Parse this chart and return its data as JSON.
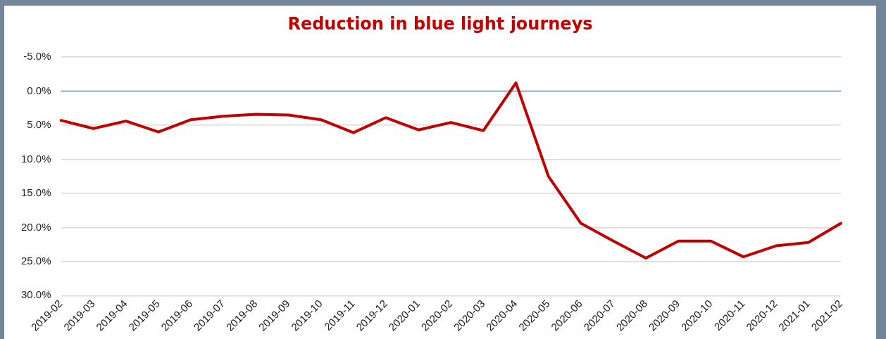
{
  "chart_data": {
    "type": "line",
    "title": "Reduction in blue light journeys",
    "categories": [
      "2019-02",
      "2019-03",
      "2019-04",
      "2019-05",
      "2019-06",
      "2019-07",
      "2019-08",
      "2019-09",
      "2019-10",
      "2019-11",
      "2019-12",
      "2020-01",
      "2020-02",
      "2020-03",
      "2020-04",
      "2020-05",
      "2020-06",
      "2020-07",
      "2020-08",
      "2020-09",
      "2020-10",
      "2020-11",
      "2020-12",
      "2021-01",
      "2021-02"
    ],
    "series": [
      {
        "color": "#c00000",
        "values": [
          4.3,
          5.5,
          4.4,
          6.0,
          4.2,
          3.7,
          3.4,
          3.5,
          4.2,
          6.1,
          3.9,
          5.7,
          4.6,
          5.8,
          -1.2,
          12.5,
          19.4,
          22.0,
          24.5,
          22.0,
          22.0,
          24.3,
          22.7,
          22.2,
          19.4
        ]
      }
    ],
    "ylim": [
      30,
      -5
    ],
    "yticks": [
      {
        "value": -5,
        "label": "-5.0%"
      },
      {
        "value": 0,
        "label": "0.0%"
      },
      {
        "value": 5,
        "label": "5.0%"
      },
      {
        "value": 10,
        "label": "10.0%"
      },
      {
        "value": 15,
        "label": "15.0%"
      },
      {
        "value": 20,
        "label": "20.0%"
      },
      {
        "value": 25,
        "label": "25.0%"
      },
      {
        "value": 30,
        "label": "30.0%"
      }
    ],
    "ref_lines": [
      {
        "axis": "y",
        "value": 0,
        "color": "#5b9bd5"
      }
    ],
    "grid": "y",
    "legend": false,
    "marker": "none",
    "line_style": "solid"
  }
}
